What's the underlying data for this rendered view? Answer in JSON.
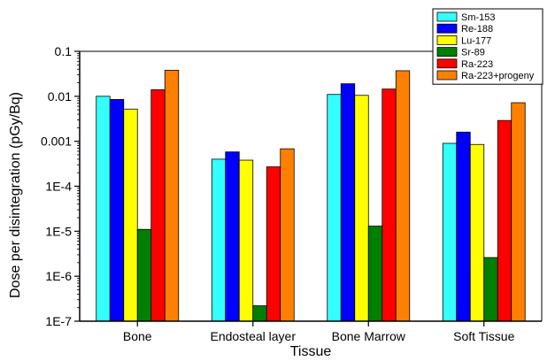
{
  "chart_data": {
    "type": "bar",
    "xlabel": "Tissue",
    "ylabel": "Dose per disintegration (pGy/Bq)",
    "yscale": "log",
    "ylim": [
      1e-07,
      0.1
    ],
    "yticks": [
      {
        "value": 1e-07,
        "label": "1E-7"
      },
      {
        "value": 1e-06,
        "label": "1E-6"
      },
      {
        "value": 1e-05,
        "label": "1E-5"
      },
      {
        "value": 0.0001,
        "label": "1E-4"
      },
      {
        "value": 0.001,
        "label": "0.001"
      },
      {
        "value": 0.01,
        "label": "0.01"
      },
      {
        "value": 0.1,
        "label": "0.1"
      }
    ],
    "categories": [
      "Bone",
      "Endosteal layer",
      "Bone Marrow",
      "Soft Tissue"
    ],
    "legend_position": "top-right",
    "series": [
      {
        "name": "Sm-153",
        "color": "#33ffff",
        "values": [
          0.01,
          0.0004,
          0.011,
          0.0009
        ]
      },
      {
        "name": "Re-188",
        "color": "#0000ff",
        "values": [
          0.0085,
          0.00058,
          0.019,
          0.0016
        ]
      },
      {
        "name": "Lu-177",
        "color": "#ffff00",
        "values": [
          0.0052,
          0.00038,
          0.0105,
          0.00085
        ]
      },
      {
        "name": "Sr-89",
        "color": "#007f00",
        "values": [
          1.1e-05,
          2.2e-07,
          1.3e-05,
          2.6e-06
        ]
      },
      {
        "name": "Ra-223",
        "color": "#ff0000",
        "values": [
          0.014,
          0.00027,
          0.0145,
          0.0029
        ]
      },
      {
        "name": "Ra-223+progeny",
        "color": "#ff8000",
        "values": [
          0.038,
          0.00068,
          0.037,
          0.0072
        ]
      }
    ]
  }
}
